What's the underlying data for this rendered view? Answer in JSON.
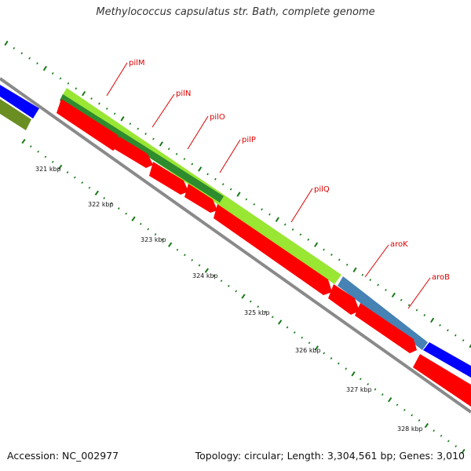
{
  "title": "Methylococcus capsulatus str. Bath, complete genome",
  "footer": {
    "accession": "Accession: NC_002977",
    "summary": "Topology: circular; Length: 3,304,561 bp; Genes: 3,010"
  },
  "colors": {
    "backbone": "#8a8a8a",
    "reverse_cds": "#ff0000",
    "forward_cds": "#0000ff",
    "forward_cds_light": "#99e633",
    "forward_cds_dark": "#2e8b2e",
    "forward_cds_olive": "#6b8e23",
    "forward_cds_steel": "#4682b4",
    "tick": "#1a7a1a",
    "gene_label": "#dd0000"
  },
  "gene_labels": [
    {
      "name": "pilM",
      "icon": "leader-line"
    },
    {
      "name": "pilN",
      "icon": "leader-line"
    },
    {
      "name": "pilO",
      "icon": "leader-line"
    },
    {
      "name": "pilP",
      "icon": "leader-line"
    },
    {
      "name": "pilQ",
      "icon": "leader-line"
    },
    {
      "name": "aroK",
      "icon": "leader-line"
    },
    {
      "name": "aroB",
      "icon": "leader-line"
    }
  ],
  "kbp_labels": [
    "321 kbp",
    "322 kbp",
    "323 kbp",
    "324 kbp",
    "325 kbp",
    "326 kbp",
    "327 kbp",
    "328 kbp"
  ]
}
